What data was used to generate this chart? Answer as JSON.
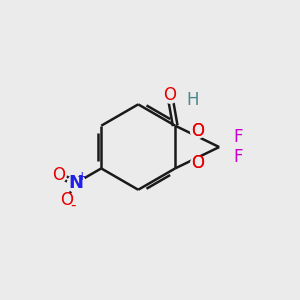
{
  "bg_color": "#ebebeb",
  "bond_color": "#1a1a1a",
  "bond_width": 1.8,
  "atom_colors": {
    "O": "#e80000",
    "N": "#2020e8",
    "F": "#cc00cc",
    "H": "#4a8888",
    "C": "#1a1a1a"
  },
  "font_size": 12,
  "font_size_small": 10,
  "fig_size": [
    3.0,
    3.0
  ],
  "dpi": 100
}
